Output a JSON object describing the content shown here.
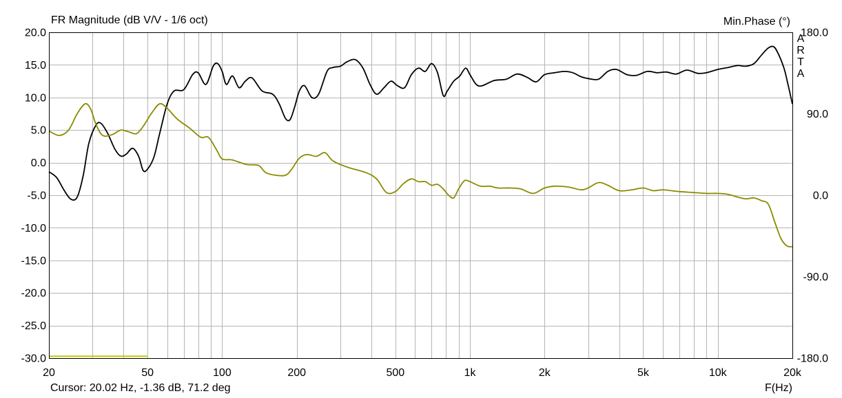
{
  "header": {
    "title": "FR Magnitude (dB V/V - 1/6 oct)",
    "right_title": "Min.Phase (°)",
    "watermark": [
      "A",
      "R",
      "T",
      "A"
    ]
  },
  "footer": {
    "cursor": "Cursor: 20.02 Hz, -1.36 dB, 71.2 deg",
    "xunit": "F(Hz)"
  },
  "colors": {
    "magnitude": "#000000",
    "phase": "#8a8a00",
    "grid": "#b4b4b4",
    "frame": "#000000"
  },
  "chart_data": {
    "type": "line",
    "title": "FR Magnitude (dB V/V - 1/6 oct)",
    "xlabel": "F(Hz)",
    "ylabel_right": "Min.Phase (°)",
    "xscale": "log",
    "xlim": [
      20,
      20000
    ],
    "ylim_left": [
      -30,
      20
    ],
    "ylim_right": [
      -180,
      180
    ],
    "grid": true,
    "x_ticks": [
      {
        "value": 20,
        "label": "20"
      },
      {
        "value": 50,
        "label": "50"
      },
      {
        "value": 100,
        "label": "100"
      },
      {
        "value": 200,
        "label": "200"
      },
      {
        "value": 500,
        "label": "500"
      },
      {
        "value": 1000,
        "label": "1k"
      },
      {
        "value": 2000,
        "label": "2k"
      },
      {
        "value": 5000,
        "label": "5k"
      },
      {
        "value": 10000,
        "label": "10k"
      },
      {
        "value": 20000,
        "label": "20k"
      }
    ],
    "y_left_ticks": [
      {
        "value": 20,
        "label": "20.0"
      },
      {
        "value": 15,
        "label": "15.0"
      },
      {
        "value": 10,
        "label": "10.0"
      },
      {
        "value": 5,
        "label": "5.0"
      },
      {
        "value": 0,
        "label": "0.0"
      },
      {
        "value": -5,
        "label": "-5.0"
      },
      {
        "value": -10,
        "label": "-10.0"
      },
      {
        "value": -15,
        "label": "-15.0"
      },
      {
        "value": -20,
        "label": "-20.0"
      },
      {
        "value": -25,
        "label": "-25.0"
      },
      {
        "value": -30,
        "label": "-30.0"
      }
    ],
    "y_right_ticks": [
      {
        "value": 180,
        "label": "180.0"
      },
      {
        "value": 90,
        "label": "90.0"
      },
      {
        "value": 0,
        "label": "0.0"
      },
      {
        "value": -90,
        "label": "-90.0"
      },
      {
        "value": -180,
        "label": "-180.0"
      }
    ],
    "series": [
      {
        "axis": "left",
        "color": "#000000",
        "points": [
          [
            20,
            -1.4
          ],
          [
            21.5,
            -2.3
          ],
          [
            23,
            -4.2
          ],
          [
            24.5,
            -5.6
          ],
          [
            26,
            -5.3
          ],
          [
            27.5,
            -2.0
          ],
          [
            29,
            3.0
          ],
          [
            31,
            5.8
          ],
          [
            32.5,
            6.0
          ],
          [
            34.5,
            4.5
          ],
          [
            37,
            2.0
          ],
          [
            39,
            1.0
          ],
          [
            41,
            1.3
          ],
          [
            43.5,
            2.2
          ],
          [
            46,
            1.0
          ],
          [
            48,
            -1.2
          ],
          [
            50,
            -1.0
          ],
          [
            53,
            0.8
          ],
          [
            56,
            4.5
          ],
          [
            60,
            9.0
          ],
          [
            64,
            11.0
          ],
          [
            70,
            11.2
          ],
          [
            76,
            13.5
          ],
          [
            80,
            13.8
          ],
          [
            86,
            12.0
          ],
          [
            92,
            14.8
          ],
          [
            96,
            15.2
          ],
          [
            100,
            14.0
          ],
          [
            104,
            12.0
          ],
          [
            110,
            13.3
          ],
          [
            117,
            11.5
          ],
          [
            124,
            12.5
          ],
          [
            132,
            13.0
          ],
          [
            145,
            11.0
          ],
          [
            160,
            10.5
          ],
          [
            170,
            9.0
          ],
          [
            180,
            6.8
          ],
          [
            188,
            6.6
          ],
          [
            196,
            8.5
          ],
          [
            205,
            11.0
          ],
          [
            215,
            11.8
          ],
          [
            230,
            10.0
          ],
          [
            245,
            10.5
          ],
          [
            265,
            14.0
          ],
          [
            280,
            14.6
          ],
          [
            300,
            14.8
          ],
          [
            320,
            15.5
          ],
          [
            345,
            15.8
          ],
          [
            370,
            14.5
          ],
          [
            395,
            12.0
          ],
          [
            420,
            10.5
          ],
          [
            450,
            11.5
          ],
          [
            480,
            12.5
          ],
          [
            510,
            11.8
          ],
          [
            545,
            11.5
          ],
          [
            580,
            13.5
          ],
          [
            620,
            14.5
          ],
          [
            660,
            14.0
          ],
          [
            700,
            15.2
          ],
          [
            740,
            13.8
          ],
          [
            780,
            10.3
          ],
          [
            810,
            11.0
          ],
          [
            860,
            12.5
          ],
          [
            910,
            13.3
          ],
          [
            960,
            14.5
          ],
          [
            1000,
            13.5
          ],
          [
            1060,
            12.0
          ],
          [
            1120,
            11.8
          ],
          [
            1250,
            12.6
          ],
          [
            1400,
            12.8
          ],
          [
            1550,
            13.6
          ],
          [
            1700,
            13.1
          ],
          [
            1850,
            12.4
          ],
          [
            2000,
            13.5
          ],
          [
            2200,
            13.8
          ],
          [
            2400,
            14.0
          ],
          [
            2600,
            13.8
          ],
          [
            2800,
            13.2
          ],
          [
            3000,
            12.9
          ],
          [
            3300,
            12.8
          ],
          [
            3600,
            14.0
          ],
          [
            3900,
            14.3
          ],
          [
            4300,
            13.5
          ],
          [
            4700,
            13.4
          ],
          [
            5200,
            14.0
          ],
          [
            5700,
            13.8
          ],
          [
            6200,
            13.9
          ],
          [
            6800,
            13.6
          ],
          [
            7500,
            14.2
          ],
          [
            8300,
            13.7
          ],
          [
            9000,
            13.8
          ],
          [
            10000,
            14.3
          ],
          [
            11000,
            14.6
          ],
          [
            12000,
            14.9
          ],
          [
            13000,
            14.8
          ],
          [
            14000,
            15.2
          ],
          [
            15000,
            16.5
          ],
          [
            16000,
            17.6
          ],
          [
            16800,
            17.8
          ],
          [
            17500,
            16.8
          ],
          [
            18500,
            14.5
          ],
          [
            19200,
            12.0
          ],
          [
            20000,
            9.0
          ]
        ]
      },
      {
        "axis": "right",
        "color": "#8a8a00",
        "points": [
          [
            20,
            71
          ],
          [
            22,
            66
          ],
          [
            24,
            72
          ],
          [
            26,
            90
          ],
          [
            28,
            101
          ],
          [
            29.5,
            95
          ],
          [
            31,
            78
          ],
          [
            33,
            66
          ],
          [
            36,
            67
          ],
          [
            39,
            72
          ],
          [
            42,
            70
          ],
          [
            45,
            68
          ],
          [
            48,
            76
          ],
          [
            52,
            91
          ],
          [
            56,
            101
          ],
          [
            60,
            96
          ],
          [
            66,
            84
          ],
          [
            74,
            74
          ],
          [
            82,
            64
          ],
          [
            88,
            64
          ],
          [
            95,
            50
          ],
          [
            100,
            40
          ],
          [
            110,
            39
          ],
          [
            125,
            34
          ],
          [
            140,
            33
          ],
          [
            150,
            25
          ],
          [
            165,
            22
          ],
          [
            180,
            22
          ],
          [
            190,
            28
          ],
          [
            205,
            41
          ],
          [
            220,
            45
          ],
          [
            240,
            43
          ],
          [
            260,
            47
          ],
          [
            280,
            38
          ],
          [
            320,
            31
          ],
          [
            380,
            25
          ],
          [
            420,
            18
          ],
          [
            460,
            3
          ],
          [
            500,
            4
          ],
          [
            540,
            13
          ],
          [
            580,
            18
          ],
          [
            620,
            15
          ],
          [
            660,
            15
          ],
          [
            700,
            11
          ],
          [
            740,
            12
          ],
          [
            780,
            7
          ],
          [
            820,
            0
          ],
          [
            860,
            -3
          ],
          [
            900,
            7
          ],
          [
            950,
            16
          ],
          [
            1000,
            15
          ],
          [
            1100,
            10
          ],
          [
            1200,
            10
          ],
          [
            1300,
            8
          ],
          [
            1450,
            8
          ],
          [
            1600,
            7
          ],
          [
            1800,
            2
          ],
          [
            2000,
            8
          ],
          [
            2200,
            10
          ],
          [
            2500,
            9
          ],
          [
            2800,
            6
          ],
          [
            3000,
            8
          ],
          [
            3300,
            14
          ],
          [
            3600,
            11
          ],
          [
            4000,
            5
          ],
          [
            4500,
            6
          ],
          [
            5000,
            8
          ],
          [
            5500,
            5
          ],
          [
            6000,
            6
          ],
          [
            7000,
            4
          ],
          [
            8000,
            3
          ],
          [
            9000,
            2
          ],
          [
            10000,
            2
          ],
          [
            11000,
            1
          ],
          [
            12000,
            -2
          ],
          [
            13000,
            -4
          ],
          [
            14000,
            -3
          ],
          [
            15000,
            -6
          ],
          [
            16000,
            -10
          ],
          [
            17000,
            -30
          ],
          [
            18000,
            -48
          ],
          [
            19000,
            -56
          ],
          [
            20000,
            -57
          ]
        ]
      },
      {
        "axis": "left",
        "color": "#c8c800",
        "points": [
          [
            20,
            -29.7
          ],
          [
            50,
            -29.7
          ]
        ]
      }
    ]
  }
}
